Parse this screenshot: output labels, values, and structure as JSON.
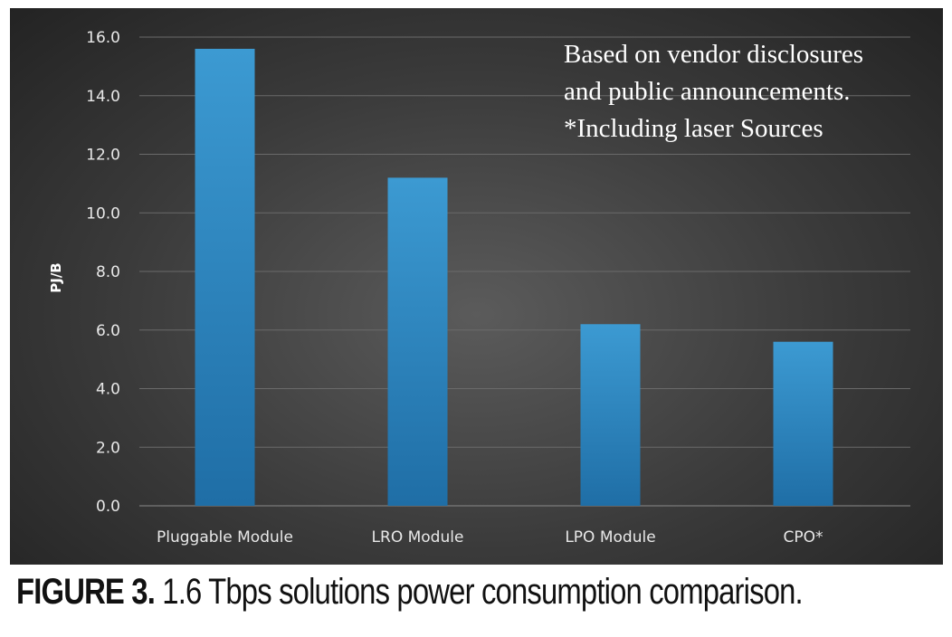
{
  "chart_data": {
    "type": "bar",
    "categories": [
      "Pluggable Module",
      "LRO Module",
      "LPO Module",
      "CPO*"
    ],
    "values": [
      15.6,
      11.2,
      6.2,
      5.6
    ],
    "title": "",
    "xlabel": "",
    "ylabel": "PJ/B",
    "ylim": [
      0,
      16
    ],
    "yticks": [
      "0.0",
      "2.0",
      "4.0",
      "6.0",
      "8.0",
      "10.0",
      "12.0",
      "14.0",
      "16.0"
    ],
    "grid": true,
    "annotation": [
      "Based on vendor disclosures",
      "and public announcements.",
      "*Including laser Sources"
    ],
    "colors": {
      "bar_top": "#3c9ad2",
      "bar_bottom": "#1f6ea6",
      "grid": "#6a6a6a"
    }
  },
  "caption": {
    "label": "FIGURE 3.",
    "text": " 1.6 Tbps solutions power consumption comparison."
  }
}
